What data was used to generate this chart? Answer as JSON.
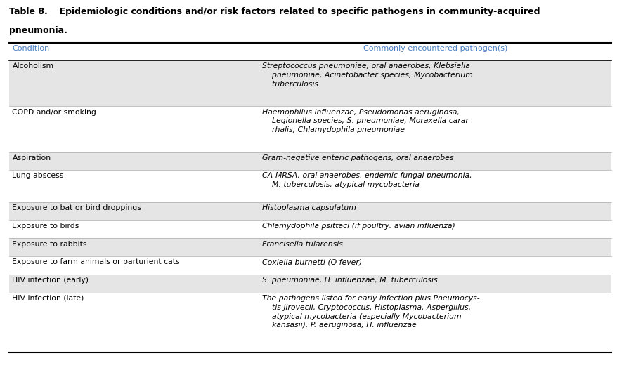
{
  "title_line1": "Table 8.  Epidemiologic conditions and/or risk factors related to specific pathogens in community-acquired",
  "title_line2": "pneumonia.",
  "col_header_left": "Condition",
  "col_header_right": "Commonly encountered pathogen(s)",
  "header_color": "#4a7fc1",
  "rows": [
    {
      "condition": "Alcoholism",
      "pathogens": "Streptococcus pneumoniae, oral anaerobes, Klebsiella\n    pneumoniae, Acinetobacter species, Mycobacterium\n    tuberculosis",
      "shaded": true,
      "n_lines": 3
    },
    {
      "condition": "COPD and/or smoking",
      "pathogens": "Haemophilus influenzae, Pseudomonas aeruginosa,\n    Legionella species, S. pneumoniae, Moraxella carar-\n    rhalis, Chlamydophila pneumoniae",
      "shaded": false,
      "n_lines": 3
    },
    {
      "condition": "Aspiration",
      "pathogens": "Gram-negative enteric pathogens, oral anaerobes",
      "shaded": true,
      "n_lines": 1
    },
    {
      "condition": "Lung abscess",
      "pathogens": "CA-MRSA, oral anaerobes, endemic fungal pneumonia,\n    M. tuberculosis, atypical mycobacteria",
      "shaded": false,
      "n_lines": 2
    },
    {
      "condition": "Exposure to bat or bird droppings",
      "pathogens": "Histoplasma capsulatum",
      "shaded": true,
      "n_lines": 1
    },
    {
      "condition": "Exposure to birds",
      "pathogens": "Chlamydophila psittaci (if poultry: avian influenza)",
      "shaded": false,
      "n_lines": 1
    },
    {
      "condition": "Exposure to rabbits",
      "pathogens": "Francisella tularensis",
      "shaded": true,
      "n_lines": 1
    },
    {
      "condition": "Exposure to farm animals or parturient cats",
      "pathogens": "Coxiella burnetti (Q fever)",
      "shaded": false,
      "n_lines": 1
    },
    {
      "condition": "HIV infection (early)",
      "pathogens": "S. pneumoniae, H. influenzae, M. tuberculosis",
      "shaded": true,
      "n_lines": 1
    },
    {
      "condition": "HIV infection (late)",
      "pathogens": "The pathogens listed for early infection plus Pneumocys-\n    tis jirovecii, Cryptococcus, Histoplasma, Aspergillus,\n    atypical mycobacteria (especially Mycobacterium\n    kansasii), P. aeruginosa, H. influenzae",
      "shaded": false,
      "n_lines": 4
    }
  ],
  "bg_color": "#ffffff",
  "shaded_color": "#e5e5e5",
  "line_color": "#000000",
  "col_split": 0.415,
  "font_size": 7.8,
  "title_font_size": 9.0,
  "header_font_size": 8.0
}
